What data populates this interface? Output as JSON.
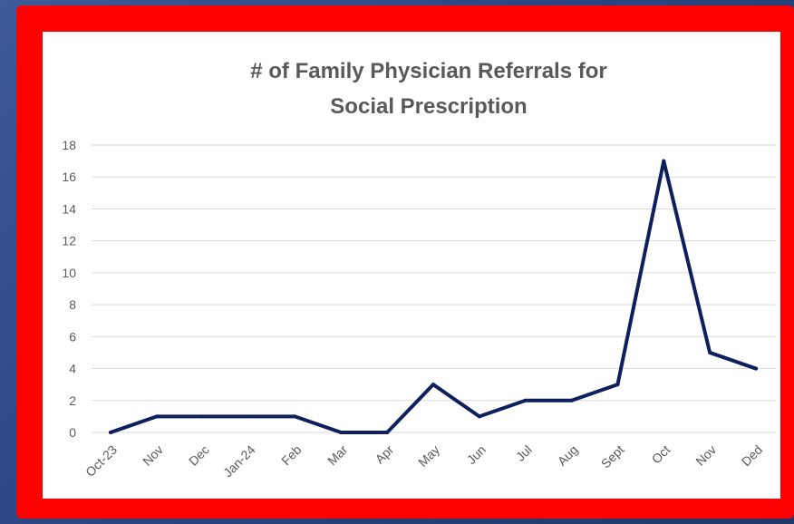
{
  "chart_data": {
    "type": "line",
    "title": "# of Family Physician Referrals for Social Prescription",
    "title_lines": [
      "# of Family Physician Referrals for",
      "Social Prescription"
    ],
    "categories": [
      "Oct-23",
      "Nov",
      "Dec",
      "Jan-24",
      "Feb",
      "Mar",
      "Apr",
      "May",
      "Jun",
      "Jul",
      "Aug",
      "Sept",
      "Oct",
      "Nov",
      "Ded"
    ],
    "series": [
      {
        "values": [
          0,
          1,
          1,
          1,
          1,
          0,
          0,
          3,
          1,
          2,
          2,
          3,
          17,
          5,
          4
        ]
      }
    ],
    "ylim": [
      0,
      18
    ],
    "yticks": [
      0,
      2,
      4,
      6,
      8,
      10,
      12,
      14,
      16,
      18
    ],
    "xlabel": "",
    "ylabel": "",
    "grid": true,
    "line_color": "#0d1f5c"
  },
  "colors": {
    "frame": "#ff0000",
    "background": "#2a4580",
    "panel": "#ffffff",
    "gridline": "#d9d9d9",
    "text": "#595959"
  }
}
